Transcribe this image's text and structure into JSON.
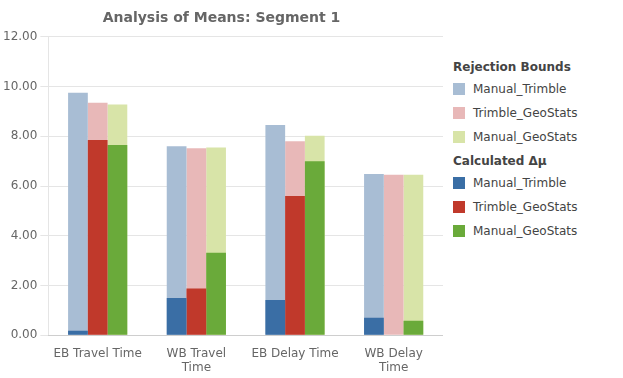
{
  "chart_data": {
    "type": "bar",
    "title": "Analysis of Means: Segment 1",
    "categories": [
      "EB Travel Time",
      "WB Travel\nTime",
      "EB Delay Time",
      "WB Delay\nTime"
    ],
    "series": [
      {
        "name": "Manual_Trimble",
        "legend_group": "Rejection Bounds",
        "color": "#a8bdd4",
        "values": [
          9.75,
          7.6,
          8.45,
          6.48
        ]
      },
      {
        "name": "Trimble_GeoStats",
        "legend_group": "Rejection Bounds",
        "color": "#e8b8b8",
        "values": [
          9.35,
          7.52,
          7.8,
          6.45
        ]
      },
      {
        "name": "Manual_GeoStats",
        "legend_group": "Rejection Bounds",
        "color": "#d8e4a8",
        "values": [
          9.28,
          7.55,
          8.02,
          6.45
        ]
      },
      {
        "name": "Manual_Trimble",
        "legend_group": "Calculated Δμ",
        "color": "#3a6ea5",
        "values": [
          0.18,
          1.5,
          1.42,
          0.7
        ]
      },
      {
        "name": "Trimble_GeoStats",
        "legend_group": "Calculated Δμ",
        "color": "#c0392b",
        "values": [
          7.85,
          1.88,
          5.6,
          0.0
        ]
      },
      {
        "name": "Manual_GeoStats",
        "legend_group": "Calculated Δμ",
        "color": "#6aaa3a",
        "values": [
          7.65,
          3.32,
          7.0,
          0.58
        ]
      }
    ],
    "ylim": [
      0,
      12
    ],
    "yticks": [
      {
        "value": 0,
        "label": "0.00"
      },
      {
        "value": 2,
        "label": "2.00"
      },
      {
        "value": 4,
        "label": "4.00"
      },
      {
        "value": 6,
        "label": "6.00"
      },
      {
        "value": 8,
        "label": "8.00"
      },
      {
        "value": 10,
        "label": "10.00"
      },
      {
        "value": 12,
        "label": "12.00"
      }
    ],
    "grid": true,
    "legend": "right"
  }
}
